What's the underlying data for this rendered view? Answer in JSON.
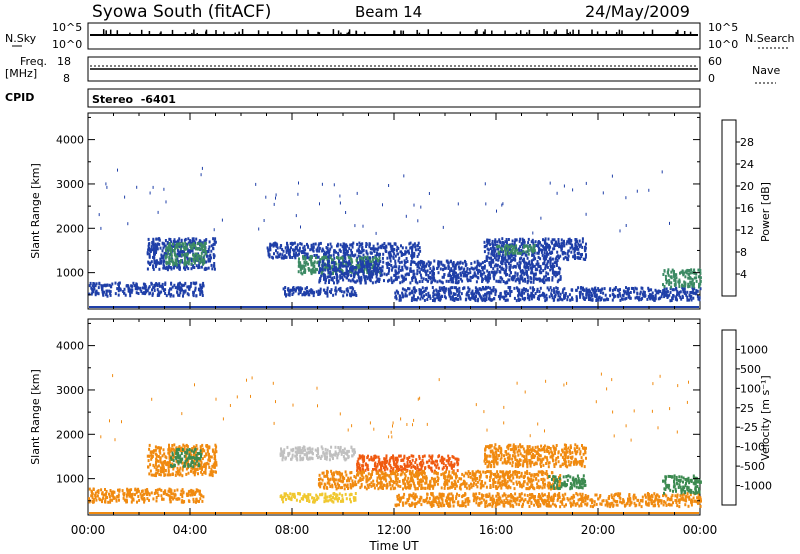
{
  "header": {
    "title": "Syowa South (fitACF)",
    "beam": "Beam 14",
    "date": "24/May/2009"
  },
  "top_panels": {
    "nsky_label": "N.Sky",
    "nsky_max": "10^5",
    "nsky_min": "10^0",
    "nsearch_label": "N.Search",
    "nsearch_max": "10^5",
    "nsearch_min": "10^0",
    "freq_label_1": "Freq.",
    "freq_label_2": "[MHz]",
    "freq_max": "18",
    "freq_min": "8",
    "nave_label": "Nave",
    "nave_max": "60",
    "nave_min": "0",
    "cpid_label": "CPID",
    "cpid_value": "Stereo  -6401"
  },
  "chart_data": [
    {
      "type": "heatmap",
      "name": "power",
      "ylabel": "Slant Range [km]",
      "yticks": [
        "1000",
        "2000",
        "3000",
        "4000"
      ],
      "ylim": [
        180,
        4600
      ],
      "xlim": [
        0,
        24
      ],
      "colorbar_label": "Power [dB]",
      "colorbar_ticks": [
        "4",
        "8",
        "12",
        "16",
        "20",
        "24",
        "28"
      ],
      "colorbar_colors": [
        "#0000ff",
        "#1f3fa8",
        "#3c8a64",
        "#4ec93a",
        "#e9d21e",
        "#f4a21a",
        "#f06418",
        "#e02010"
      ],
      "regions": [
        {
          "t0": 2.3,
          "t1": 5.0,
          "r0": 1100,
          "r1": 1800,
          "color": "#1f3fa8"
        },
        {
          "t0": 3.0,
          "t1": 4.6,
          "r0": 1200,
          "r1": 1700,
          "color": "#3c8a64"
        },
        {
          "t0": 0.0,
          "t1": 4.5,
          "r0": 500,
          "r1": 800,
          "color": "#1f3fa8"
        },
        {
          "t0": 7.0,
          "t1": 13.0,
          "r0": 1350,
          "r1": 1700,
          "color": "#1f3fa8"
        },
        {
          "t0": 8.2,
          "t1": 11.5,
          "r0": 1000,
          "r1": 1400,
          "color": "#3c8a64"
        },
        {
          "t0": 9.0,
          "t1": 18.5,
          "r0": 800,
          "r1": 1300,
          "color": "#1f3fa8"
        },
        {
          "t0": 15.5,
          "t1": 19.5,
          "r0": 1300,
          "r1": 1800,
          "color": "#1f3fa8"
        },
        {
          "t0": 16.0,
          "t1": 17.5,
          "r0": 1450,
          "r1": 1650,
          "color": "#3c8a64"
        },
        {
          "t0": 7.5,
          "t1": 10.5,
          "r0": 500,
          "r1": 700,
          "color": "#1f3fa8"
        },
        {
          "t0": 12.0,
          "t1": 24.0,
          "r0": 400,
          "r1": 700,
          "color": "#1f3fa8"
        },
        {
          "t0": 22.5,
          "t1": 24.0,
          "r0": 700,
          "r1": 1100,
          "color": "#3c8a64"
        }
      ]
    },
    {
      "type": "heatmap",
      "name": "velocity",
      "ylabel": "Slant Range [km]",
      "yticks": [
        "1000",
        "2000",
        "3000",
        "4000"
      ],
      "ylim": [
        180,
        4600
      ],
      "xlim": [
        0,
        24
      ],
      "xlabel": "Time UT",
      "xticks": [
        "00:00",
        "04:00",
        "08:00",
        "12:00",
        "16:00",
        "20:00",
        "00:00"
      ],
      "colorbar_label": "Velocity [m s⁻¹]",
      "colorbar_ticks": [
        "1000",
        "500",
        "100",
        "25",
        "-25",
        "-100",
        "-500",
        "-1000"
      ],
      "colorbar_colors": [
        "#1f3fb0",
        "#2a7a8a",
        "#3c8a50",
        "#54c832",
        "#c0c0c0",
        "#f0c830",
        "#f08a10",
        "#f05a10",
        "#e02010"
      ],
      "regions": [
        {
          "t0": 2.3,
          "t1": 5.0,
          "r0": 1100,
          "r1": 1800,
          "color": "#f08a10"
        },
        {
          "t0": 3.2,
          "t1": 4.4,
          "r0": 1300,
          "r1": 1700,
          "color": "#3c8a50"
        },
        {
          "t0": 0.0,
          "t1": 4.5,
          "r0": 500,
          "r1": 800,
          "color": "#f08a10"
        },
        {
          "t0": 7.5,
          "t1": 10.5,
          "r0": 1450,
          "r1": 1750,
          "color": "#c0c0c0"
        },
        {
          "t0": 10.5,
          "t1": 14.5,
          "r0": 1200,
          "r1": 1550,
          "color": "#f05a10"
        },
        {
          "t0": 9.0,
          "t1": 18.5,
          "r0": 800,
          "r1": 1200,
          "color": "#f08a10"
        },
        {
          "t0": 15.5,
          "t1": 19.5,
          "r0": 1300,
          "r1": 1800,
          "color": "#f08a10"
        },
        {
          "t0": 18.0,
          "t1": 19.5,
          "r0": 800,
          "r1": 1100,
          "color": "#3c8a50"
        },
        {
          "t0": 7.5,
          "t1": 10.5,
          "r0": 500,
          "r1": 700,
          "color": "#f0c830"
        },
        {
          "t0": 12.0,
          "t1": 24.0,
          "r0": 400,
          "r1": 700,
          "color": "#f08a10"
        },
        {
          "t0": 22.5,
          "t1": 24.0,
          "r0": 700,
          "r1": 1100,
          "color": "#3c8a50"
        }
      ]
    }
  ]
}
